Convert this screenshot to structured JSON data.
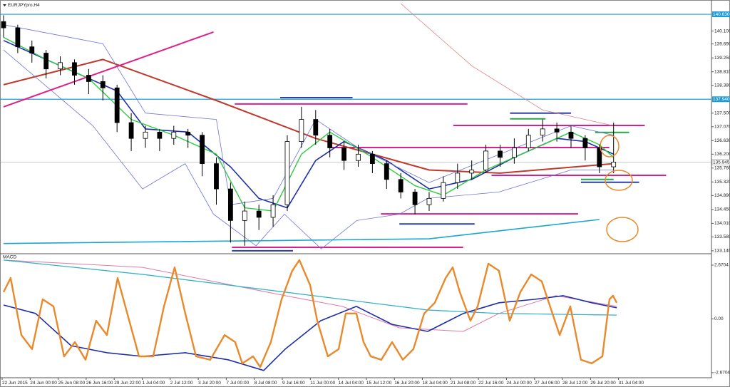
{
  "chart_data": [
    {
      "type": "candlestick",
      "title": "EURJPYpro,H4",
      "xlim": [
        -0.25,
        49.9
      ],
      "ylim": [
        133.07,
        140.97
      ],
      "yticks": [
        {
          "value": 140.1,
          "label": "140.100"
        },
        {
          "value": 139.69,
          "label": "139.690"
        },
        {
          "value": 139.25,
          "label": "139.250"
        },
        {
          "value": 138.81,
          "label": "138.810"
        },
        {
          "value": 138.38,
          "label": "138.380"
        },
        {
          "value": 137.5,
          "label": "137.500"
        },
        {
          "value": 137.07,
          "label": "137.070"
        },
        {
          "value": 136.63,
          "label": "136.630"
        },
        {
          "value": 136.2,
          "label": "136.200"
        },
        {
          "value": 135.76,
          "label": "135.760"
        },
        {
          "value": 135.32,
          "label": "135.320"
        },
        {
          "value": 134.89,
          "label": "134.890"
        },
        {
          "value": 134.45,
          "label": "134.450"
        },
        {
          "value": 134.01,
          "label": "134.010"
        },
        {
          "value": 133.58,
          "label": "133.580"
        },
        {
          "value": 133.14,
          "label": "133.140"
        }
      ],
      "price_lines": [
        {
          "value": 140.63,
          "label": "140.630",
          "color": "#1e9bd7"
        },
        {
          "value": 137.94,
          "label": "137.940",
          "color": "#1e9bd7"
        }
      ],
      "current_price": {
        "value": 135.945,
        "label": "135.945",
        "color": "#9a9a9a"
      },
      "open": [
        140.4,
        140.2,
        139.6,
        139.4,
        138.9,
        139.1,
        138.7,
        138.5,
        138.3,
        137.2,
        136.7,
        136.9,
        136.7,
        136.9,
        136.8,
        135.9,
        135.1,
        134.1,
        134.4,
        134.2,
        134.6,
        136.6,
        137.3,
        136.8,
        136.4,
        136.0,
        136.2,
        135.9,
        135.4,
        135.0,
        134.6,
        134.8,
        135.3,
        135.6,
        135.7,
        136.3,
        136.1,
        136.4,
        136.8,
        137.0,
        136.9,
        136.7,
        136.4,
        135.8
      ],
      "high": [
        140.6,
        140.3,
        139.8,
        139.5,
        139.3,
        139.2,
        138.9,
        138.7,
        138.4,
        137.5,
        137.1,
        137.0,
        137.1,
        137.0,
        136.9,
        136.1,
        135.3,
        134.7,
        134.6,
        134.9,
        136.8,
        137.7,
        137.6,
        137.0,
        136.6,
        136.5,
        136.3,
        136.0,
        135.6,
        135.1,
        135.0,
        135.5,
        135.9,
        136.0,
        136.5,
        136.5,
        136.7,
        137.0,
        137.3,
        137.2,
        137.1,
        136.8,
        136.5,
        137.2
      ],
      "low": [
        139.9,
        139.4,
        139.1,
        138.6,
        138.7,
        138.4,
        138.1,
        137.9,
        136.9,
        136.3,
        136.4,
        136.3,
        136.5,
        136.4,
        135.5,
        134.6,
        133.4,
        133.3,
        133.8,
        133.9,
        134.4,
        136.4,
        136.5,
        136.1,
        135.7,
        135.8,
        135.6,
        135.1,
        134.8,
        134.3,
        134.4,
        134.7,
        135.1,
        135.4,
        135.6,
        135.8,
        135.9,
        136.3,
        136.6,
        136.6,
        136.4,
        136.0,
        135.6,
        135.6
      ],
      "close": [
        140.2,
        139.6,
        139.4,
        138.9,
        139.1,
        138.7,
        138.5,
        138.3,
        137.2,
        136.7,
        136.9,
        136.7,
        136.9,
        136.8,
        135.9,
        135.1,
        134.1,
        134.4,
        134.2,
        134.6,
        136.6,
        137.3,
        136.8,
        136.4,
        136.0,
        136.2,
        135.9,
        135.4,
        135.0,
        134.6,
        134.8,
        135.3,
        135.6,
        135.7,
        136.3,
        136.1,
        136.4,
        136.8,
        137.0,
        136.9,
        136.7,
        136.4,
        135.8,
        135.95
      ],
      "up_color": "#ffffff",
      "down_color": "#000000",
      "overlays": [
        {
          "color": "#c0392b",
          "width": 2,
          "x": [
            0,
            7,
            15,
            22,
            30,
            35,
            43
          ],
          "values": [
            138.4,
            139.2,
            137.9,
            136.7,
            135.7,
            135.6,
            135.9
          ]
        },
        {
          "color": "#1f2fa8",
          "width": 1.6,
          "x": [
            0,
            4,
            8,
            10,
            13,
            16,
            18,
            20,
            22,
            24,
            27,
            30,
            33,
            36,
            39,
            41,
            43
          ],
          "values": [
            139.8,
            139.0,
            138.2,
            137.0,
            136.9,
            135.8,
            134.8,
            134.5,
            136.0,
            136.6,
            136.0,
            135.1,
            135.4,
            136.1,
            136.7,
            136.6,
            136.2
          ]
        },
        {
          "color": "#2ecc40",
          "width": 1.4,
          "x": [
            0,
            3,
            6,
            9,
            12,
            15,
            17,
            19,
            21,
            23,
            26,
            29,
            31,
            34,
            37,
            40,
            42,
            43
          ],
          "values": [
            139.9,
            139.2,
            138.6,
            137.3,
            136.8,
            136.2,
            134.5,
            134.4,
            136.2,
            136.9,
            136.1,
            135.2,
            134.9,
            135.7,
            136.3,
            136.9,
            136.5,
            136.1
          ]
        },
        {
          "color": "#6c74d9",
          "width": 0.8,
          "x": [
            0,
            7,
            10,
            15,
            16,
            19,
            22,
            25,
            30,
            35,
            40,
            43
          ],
          "values": [
            140.3,
            139.7,
            137.5,
            137.3,
            134.6,
            134.8,
            137.3,
            136.4,
            135.3,
            136.2,
            137.1,
            136.8
          ]
        },
        {
          "color": "#6c74d9",
          "width": 0.8,
          "x": [
            0,
            6.3,
            9.8,
            12.8,
            14.8,
            17.8,
            19.8,
            22.4,
            24.9,
            27.9,
            29.9,
            34.9,
            40,
            43
          ],
          "values": [
            139.5,
            137.1,
            135.1,
            135.9,
            134.3,
            133.3,
            134.3,
            133.2,
            134.1,
            134.3,
            134.8,
            135.0,
            135.7,
            135.7
          ]
        },
        {
          "color": "#e08080",
          "width": 0.8,
          "x": [
            28,
            33,
            38,
            43
          ],
          "values": [
            140.97,
            139.0,
            137.6,
            137.1
          ]
        },
        {
          "color": "#1aa7d0",
          "width": 1.6,
          "x": [
            0,
            30,
            42
          ],
          "values": [
            133.37,
            133.52,
            134.13
          ]
        },
        {
          "color": "#e0208a",
          "width": 2,
          "x": [
            0,
            14.8
          ],
          "values": [
            137.7,
            140.07
          ]
        }
      ],
      "levels": [
        {
          "color": "#d6218c",
          "value": 137.79,
          "from": 16.3,
          "to": 32.7
        },
        {
          "color": "#d6218c",
          "value": 137.11,
          "from": 31.7,
          "to": 45.2
        },
        {
          "color": "#d6218c",
          "value": 136.41,
          "from": 23,
          "to": 42.7
        },
        {
          "color": "#d6218c",
          "value": 135.53,
          "from": 34.4,
          "to": 46.7
        },
        {
          "color": "#d6218c",
          "value": 134.31,
          "from": 26.6,
          "to": 40.5
        },
        {
          "color": "#d6218c",
          "value": 133.25,
          "from": 16.1,
          "to": 32.4
        },
        {
          "color": "#2c3ea8",
          "value": 137.99,
          "from": 19.5,
          "to": 24.6
        },
        {
          "color": "#2c3ea8",
          "value": 137.5,
          "from": 35.7,
          "to": 40
        },
        {
          "color": "#2c3ea8",
          "value": 135.31,
          "from": 40.7,
          "to": 44.8
        },
        {
          "color": "#2c3ea8",
          "value": 133.99,
          "from": 27.9,
          "to": 33.2
        },
        {
          "color": "#2c3ea8",
          "value": 133.14,
          "from": 16.1,
          "to": 20.4
        },
        {
          "color": "#27a844",
          "value": 137.32,
          "from": 35.7,
          "to": 38.2
        },
        {
          "color": "#27a844",
          "value": 136.89,
          "from": 41.7,
          "to": 44.1
        },
        {
          "color": "#27a844",
          "value": 135.4,
          "from": 40.7,
          "to": 43
        }
      ]
    },
    {
      "type": "line",
      "title": "MACD",
      "xlim": [
        -0.25,
        49.9
      ],
      "ylim": [
        -2.92,
        3.2
      ],
      "yticks": [
        {
          "value": 2.6704,
          "label": "2.6704"
        },
        {
          "value": 0,
          "label": "0.00"
        },
        {
          "value": -2.6704,
          "label": "-2.6704"
        }
      ],
      "series": [
        {
          "color": "#9a9ad0",
          "width": 1,
          "x": [
            0,
            9.8,
            19.85,
            29.9,
            34.92,
            43.22
          ],
          "values": [
            2.92,
            2.21,
            1.33,
            0.44,
            0.27,
            0.19
          ]
        },
        {
          "color": "#e07aa8",
          "width": 1,
          "x": [
            0,
            9.8,
            19.85,
            23.87,
            27.89,
            32.41,
            34.92,
            38.94,
            43.22
          ],
          "values": [
            2.92,
            2.56,
            1.15,
            0.62,
            -0.44,
            -0.62,
            0.27,
            1.15,
            0.62
          ]
        },
        {
          "color": "#2bb5c9",
          "width": 1.2,
          "x": [
            0,
            9.8,
            19.85,
            29.9,
            34.92,
            43.22
          ],
          "values": [
            2.92,
            2.21,
            1.33,
            0.44,
            0.27,
            0.19
          ]
        },
        {
          "color": "#1f2fa8",
          "width": 1.6,
          "x": [
            0,
            2.26,
            4.77,
            7.29,
            9.8,
            12.81,
            15.83,
            18.34,
            19.85,
            22.36,
            24.87,
            27.39,
            29.9,
            32.41,
            34.92,
            37.44,
            39.45,
            41.46,
            43.22
          ],
          "values": [
            0.69,
            0.27,
            -1.33,
            -1.68,
            -1.86,
            -1.68,
            -2.03,
            -2.56,
            -1.5,
            -0.09,
            0.62,
            -0.27,
            -0.62,
            0.27,
            0.8,
            0.97,
            1.15,
            0.8,
            0.55
          ]
        },
        {
          "color": "#e8892b",
          "width": 2.4,
          "x": [
            0,
            0.5,
            1.26,
            2.01,
            2.76,
            3.52,
            4.27,
            5.03,
            5.78,
            6.53,
            7.29,
            8.04,
            8.79,
            9.55,
            10.55,
            11.31,
            12.06,
            12.81,
            13.57,
            14.57,
            15.58,
            16.33,
            16.83,
            17.59,
            18.09,
            18.84,
            19.6,
            20.35,
            20.85,
            21.61,
            22.11,
            22.86,
            23.62,
            24.12,
            24.87,
            25.38,
            25.88,
            26.63,
            27.39,
            28.14,
            28.89,
            29.65,
            30.4,
            31.16,
            31.66,
            32.16,
            32.91,
            33.42,
            34.17,
            34.92,
            35.68,
            36.43,
            37.19,
            37.94,
            38.69,
            39.2,
            39.95,
            40.7,
            41.46,
            42.21,
            42.71,
            42.96,
            43.22
          ],
          "values": [
            1.33,
            2.03,
            -0.8,
            -1.5,
            0.97,
            0.62,
            -1.86,
            -1.15,
            -2.03,
            -0.09,
            -0.8,
            2.03,
            0.09,
            -1.86,
            -1.86,
            0.62,
            2.56,
            0.27,
            -1.86,
            -2.03,
            -0.8,
            -1.15,
            -2.21,
            -1.86,
            -2.39,
            -1.15,
            0.97,
            2.39,
            2.92,
            1.68,
            -0.09,
            -1.86,
            -1.5,
            0.27,
            0.27,
            -1.15,
            -1.86,
            -2.03,
            -1.15,
            -2.03,
            -1.5,
            0.27,
            0.8,
            2.03,
            2.56,
            1.33,
            -0.09,
            0.62,
            2.74,
            2.39,
            -0.09,
            1.33,
            2.21,
            1.86,
            0.27,
            -0.8,
            0.62,
            -2.03,
            -2.21,
            -1.86,
            0.97,
            1.15,
            0.8
          ]
        }
      ],
      "time_labels": [
        "22 Jun 2015",
        "24 Jun 00:00",
        "25 Jun 08:00",
        "26 Jun 16:00",
        "29 Jun 22:00",
        "1 Jul 04:00",
        "2 Jul 12:00",
        "3 Jul 20:00",
        "7 Jul 00:00",
        "8 Jul 08:00",
        "9 Jul 16:00",
        "11 Jul 00:00",
        "14 Jul 04:00",
        "15 Jul 12:00",
        "16 Jul 20:00",
        "18 Jul 04:00",
        "21 Jul 08:00",
        "22 Jul 16:00",
        "24 Jul 00:00",
        "27 Jul 06:00",
        "28 Jul 12:00",
        "29 Jul 20:00",
        "31 Jul 04:00"
      ]
    }
  ]
}
